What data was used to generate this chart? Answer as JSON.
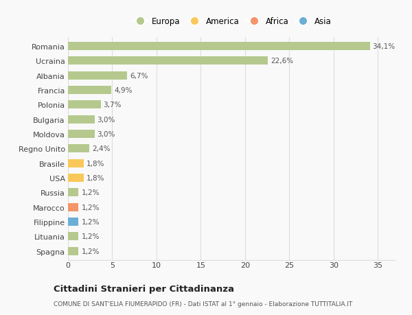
{
  "categories": [
    "Spagna",
    "Lituania",
    "Filippine",
    "Marocco",
    "Russia",
    "USA",
    "Brasile",
    "Regno Unito",
    "Moldova",
    "Bulgaria",
    "Polonia",
    "Francia",
    "Albania",
    "Ucraina",
    "Romania"
  ],
  "values": [
    1.2,
    1.2,
    1.2,
    1.2,
    1.2,
    1.8,
    1.8,
    2.4,
    3.0,
    3.0,
    3.7,
    4.9,
    6.7,
    22.6,
    34.1
  ],
  "labels": [
    "1,2%",
    "1,2%",
    "1,2%",
    "1,2%",
    "1,2%",
    "1,8%",
    "1,8%",
    "2,4%",
    "3,0%",
    "3,0%",
    "3,7%",
    "4,9%",
    "6,7%",
    "22,6%",
    "34,1%"
  ],
  "colors": [
    "#b5c98e",
    "#b5c98e",
    "#6baed6",
    "#f4956a",
    "#b5c98e",
    "#f9c85a",
    "#f9c85a",
    "#b5c98e",
    "#b5c98e",
    "#b5c98e",
    "#b5c98e",
    "#b5c98e",
    "#b5c98e",
    "#b5c98e",
    "#b5c98e"
  ],
  "legend_labels": [
    "Europa",
    "America",
    "Africa",
    "Asia"
  ],
  "legend_colors": [
    "#b5c98e",
    "#f9c85a",
    "#f4956a",
    "#6baed6"
  ],
  "title": "Cittadini Stranieri per Cittadinanza",
  "subtitle": "COMUNE DI SANT'ELIA FIUMERAPIDO (FR) - Dati ISTAT al 1° gennaio - Elaborazione TUTTITALIA.IT",
  "xlim": [
    0,
    37
  ],
  "xticks": [
    0,
    5,
    10,
    15,
    20,
    25,
    30,
    35
  ],
  "background_color": "#f9f9f9",
  "grid_color": "#dddddd"
}
